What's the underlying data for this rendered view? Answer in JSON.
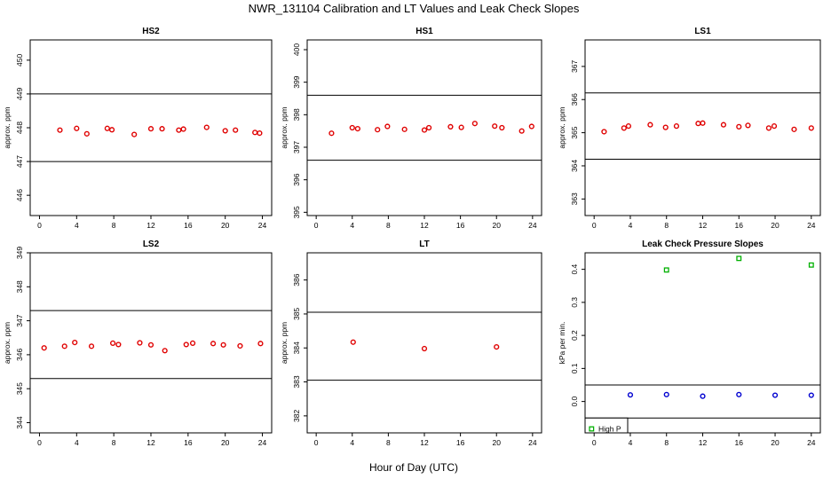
{
  "title": "NWR_131104  Calibration and LT Values and Leak Check Slopes",
  "xlabel": "Hour of Day (UTC)",
  "colors": {
    "calibration": "#e00000",
    "high_p": "#00b000",
    "low_p": "#0000d0",
    "reference": "#000000"
  },
  "chart_data": [
    {
      "type": "scatter",
      "title": "HS2",
      "xlabel": "",
      "ylabel": "approx. ppm",
      "xlim": [
        -1,
        25
      ],
      "ylim": [
        445.4,
        450.6
      ],
      "xticks": [
        0,
        4,
        8,
        12,
        16,
        20,
        24
      ],
      "yticks": [
        446,
        447,
        448,
        449,
        450
      ],
      "hlines": [
        449.0,
        447.0
      ],
      "series": [
        {
          "marker": "circle",
          "x": [
            2.2,
            4.0,
            5.1,
            7.3,
            7.8,
            10.2,
            12.0,
            13.2,
            15.0,
            15.5,
            18.0,
            20.0,
            21.1,
            23.2,
            23.7
          ],
          "y": [
            447.93,
            447.98,
            447.82,
            447.98,
            447.94,
            447.8,
            447.97,
            447.97,
            447.93,
            447.96,
            448.01,
            447.91,
            447.93,
            447.86,
            447.84
          ]
        }
      ]
    },
    {
      "type": "scatter",
      "title": "HS1",
      "xlabel": "",
      "ylabel": "approx. ppm",
      "xlim": [
        -1,
        25
      ],
      "ylim": [
        394.9,
        400.3
      ],
      "xticks": [
        0,
        4,
        8,
        12,
        16,
        20,
        24
      ],
      "yticks": [
        395,
        396,
        397,
        398,
        399,
        400
      ],
      "hlines": [
        398.6,
        396.6
      ],
      "series": [
        {
          "marker": "circle",
          "x": [
            1.7,
            4.0,
            4.6,
            6.8,
            7.9,
            9.8,
            12.0,
            12.5,
            14.9,
            16.1,
            17.6,
            19.8,
            20.6,
            22.8,
            23.9
          ],
          "y": [
            397.43,
            397.6,
            397.57,
            397.54,
            397.64,
            397.55,
            397.53,
            397.6,
            397.63,
            397.61,
            397.73,
            397.65,
            397.6,
            397.5,
            397.64
          ]
        }
      ]
    },
    {
      "type": "scatter",
      "title": "LS1",
      "xlabel": "",
      "ylabel": "approx. ppm",
      "xlim": [
        -1,
        25
      ],
      "ylim": [
        362.5,
        367.8
      ],
      "xticks": [
        0,
        4,
        8,
        12,
        16,
        20,
        24
      ],
      "yticks": [
        363,
        364,
        365,
        366,
        367
      ],
      "hlines": [
        366.2,
        364.2
      ],
      "series": [
        {
          "marker": "circle",
          "x": [
            1.1,
            3.3,
            3.8,
            6.2,
            7.9,
            9.1,
            11.5,
            12.0,
            14.3,
            16.0,
            17.0,
            19.3,
            19.9,
            22.1,
            24.0
          ],
          "y": [
            365.03,
            365.14,
            365.2,
            365.24,
            365.16,
            365.2,
            365.28,
            365.29,
            365.24,
            365.18,
            365.22,
            365.14,
            365.2,
            365.1,
            365.14
          ]
        }
      ]
    },
    {
      "type": "scatter",
      "title": "LS2",
      "xlabel": "",
      "ylabel": "approx. ppm",
      "xlim": [
        -1,
        25
      ],
      "ylim": [
        343.7,
        349.0
      ],
      "xticks": [
        0,
        4,
        8,
        12,
        16,
        20,
        24
      ],
      "yticks": [
        344,
        345,
        346,
        347,
        348,
        349
      ],
      "hlines": [
        347.3,
        345.3
      ],
      "series": [
        {
          "marker": "circle",
          "x": [
            0.5,
            2.7,
            3.8,
            5.6,
            7.9,
            8.5,
            10.8,
            12.0,
            13.5,
            15.8,
            16.5,
            18.7,
            19.8,
            21.6,
            23.8
          ],
          "y": [
            346.2,
            346.25,
            346.36,
            346.25,
            346.34,
            346.3,
            346.35,
            346.29,
            346.12,
            346.3,
            346.34,
            346.33,
            346.29,
            346.26,
            346.33
          ]
        }
      ]
    },
    {
      "type": "scatter",
      "title": "LT",
      "xlabel": "",
      "ylabel": "approx. ppm",
      "xlim": [
        -1,
        25
      ],
      "ylim": [
        381.5,
        386.8
      ],
      "xticks": [
        0,
        4,
        8,
        12,
        16,
        20,
        24
      ],
      "yticks": [
        382,
        383,
        384,
        385,
        386
      ],
      "hlines": [
        385.05,
        383.05
      ],
      "series": [
        {
          "marker": "circle",
          "x": [
            4.1,
            12.0,
            20.0
          ],
          "y": [
            384.17,
            383.98,
            384.03
          ]
        }
      ]
    },
    {
      "type": "scatter",
      "title": "Leak Check Pressure Slopes",
      "xlabel": "",
      "ylabel": "kPa per min.",
      "xlim": [
        -1,
        25
      ],
      "ylim": [
        -0.095,
        0.45
      ],
      "xticks": [
        0,
        4,
        8,
        12,
        16,
        20,
        24
      ],
      "yticks": [
        0.0,
        0.1,
        0.2,
        0.3,
        0.4
      ],
      "ytick_labels": [
        "0.0",
        "0.1",
        "0.2",
        "0.3",
        "0.4"
      ],
      "hlines": [
        0.05,
        -0.05
      ],
      "legend": {
        "placement": "bottom-left",
        "entries": [
          "High P"
        ]
      },
      "series": [
        {
          "name": "High P",
          "marker": "square",
          "x": [
            8.0,
            16.0,
            24.0
          ],
          "y": [
            0.398,
            0.433,
            0.413
          ]
        },
        {
          "marker": "circle",
          "x": [
            4.0,
            8.0,
            12.0,
            16.0,
            20.0,
            24.0
          ],
          "y": [
            0.02,
            0.021,
            0.016,
            0.021,
            0.019,
            0.019
          ]
        }
      ]
    }
  ]
}
